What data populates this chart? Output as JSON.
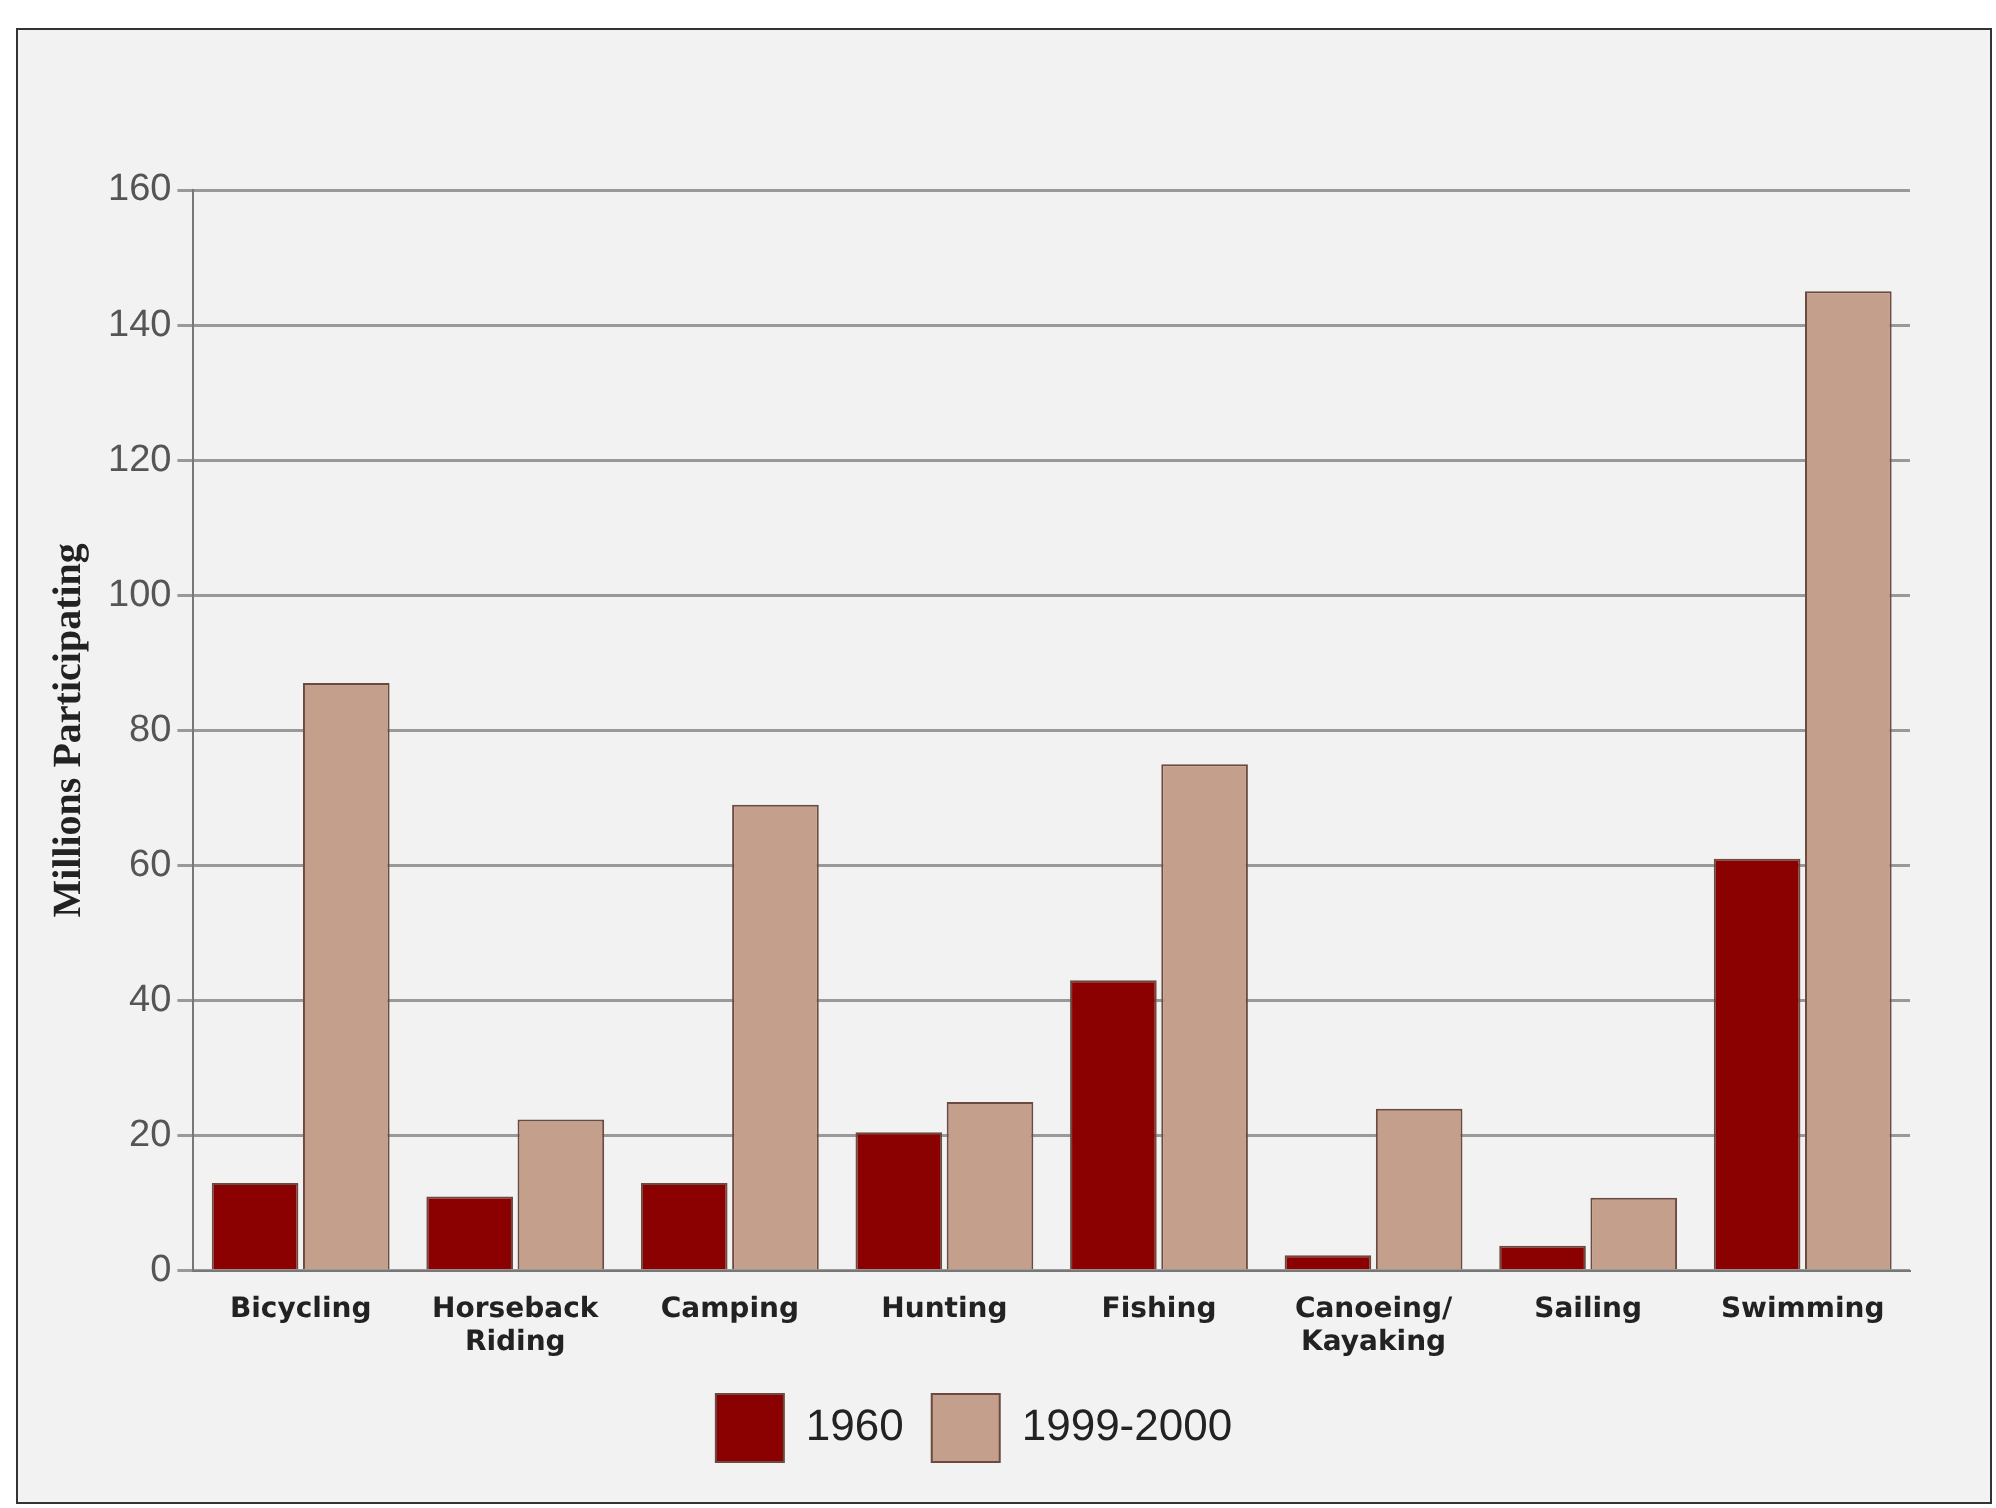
{
  "chart_data": {
    "type": "bar",
    "ylabel": "Millions Participating",
    "categories": [
      "Bicycling",
      "Horseback Riding",
      "Camping",
      "Hunting",
      "Fishing",
      "Canoeing/ Kayaking",
      "Sailing",
      "Swimming"
    ],
    "series": [
      {
        "name": "1960",
        "color": "#8b0000",
        "values": [
          13,
          11,
          13,
          20.5,
          43,
          2.3,
          3.7,
          61
        ]
      },
      {
        "name": "1999-2000",
        "color": "#c4a08c",
        "values": [
          87,
          22.4,
          69,
          25,
          75,
          24,
          10.8,
          145
        ]
      }
    ],
    "ylim": [
      0,
      160
    ],
    "yticks": [
      0,
      20,
      40,
      60,
      80,
      100,
      120,
      140,
      160
    ],
    "grid": "y",
    "legend": "bottom"
  }
}
